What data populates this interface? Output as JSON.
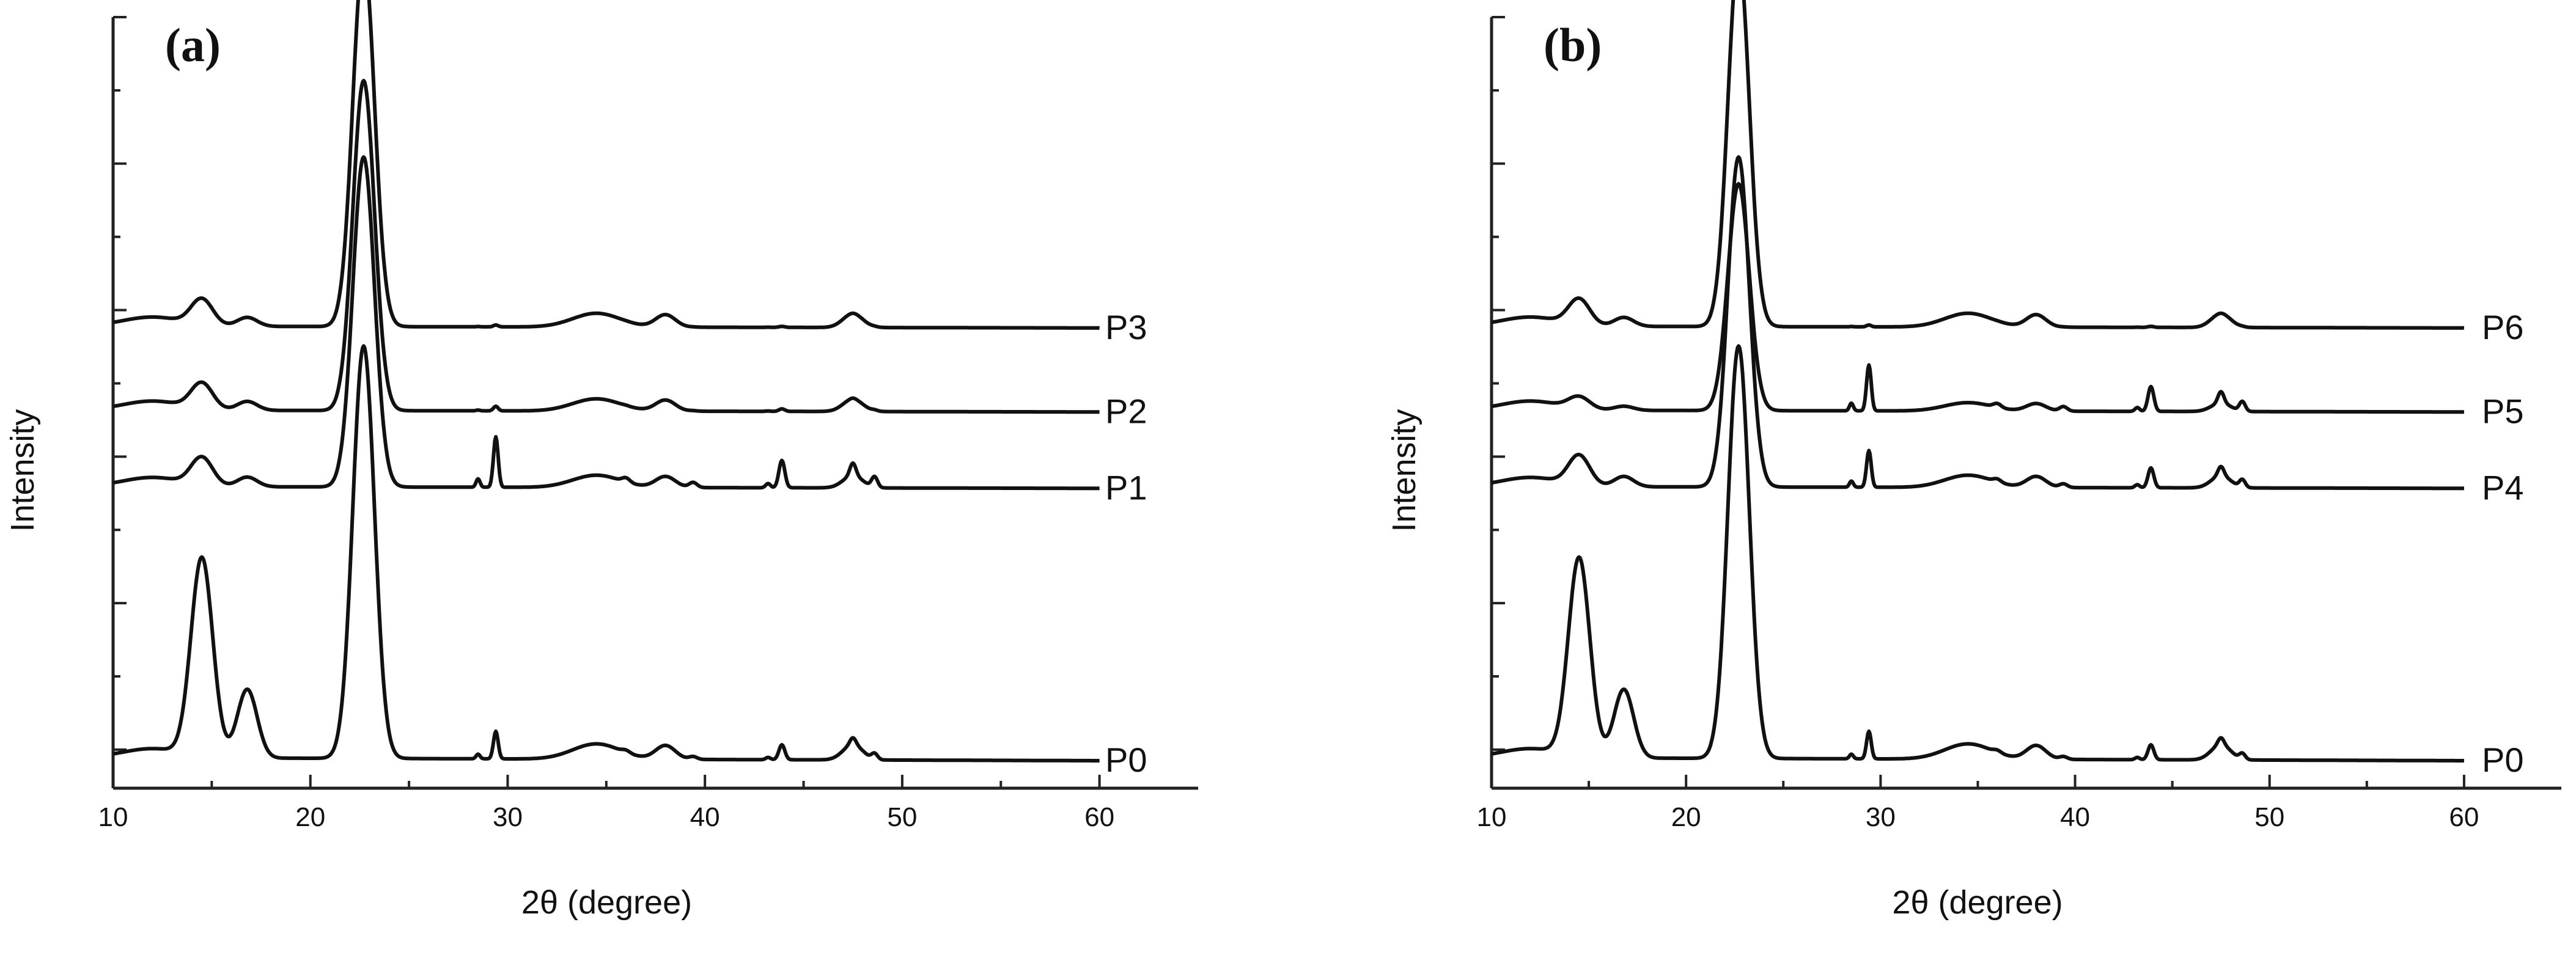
{
  "chart_data": [
    {
      "type": "line",
      "panel_label": "(a)",
      "xlabel": "2θ (degree)",
      "ylabel": "Intensity",
      "xlim": [
        10,
        65
      ],
      "xticks": [
        10,
        20,
        30,
        40,
        50,
        60
      ],
      "series": [
        {
          "name": "P3",
          "baseline": 0.565,
          "cs": 0.9,
          "cr": 0.13,
          "sharp": 0.02
        },
        {
          "name": "P2",
          "baseline": 0.455,
          "cs": 0.8,
          "cr": 0.13,
          "sharp": 0.05
        },
        {
          "name": "P1",
          "baseline": 0.355,
          "cs": 0.8,
          "cr": 0.14,
          "sharp": 0.55
        },
        {
          "name": "P0",
          "baseline": 0.0,
          "cs": 1.0,
          "cr": 1.0,
          "sharp": 0.3
        }
      ]
    },
    {
      "type": "line",
      "panel_label": "(b)",
      "xlabel": "2θ (degree)",
      "ylabel": "Intensity",
      "xlim": [
        10,
        65
      ],
      "xticks": [
        10,
        20,
        30,
        40,
        50,
        60
      ],
      "series": [
        {
          "name": "P6",
          "baseline": 0.565,
          "cs": 0.9,
          "cr": 0.13,
          "sharp": 0.02
        },
        {
          "name": "P5",
          "baseline": 0.455,
          "cs": 0.55,
          "cr": 0.06,
          "sharp": 0.5
        },
        {
          "name": "P4",
          "baseline": 0.355,
          "cs": 0.8,
          "cr": 0.15,
          "sharp": 0.4
        },
        {
          "name": "P0",
          "baseline": 0.0,
          "cs": 1.0,
          "cr": 1.0,
          "sharp": 0.3
        }
      ]
    }
  ]
}
